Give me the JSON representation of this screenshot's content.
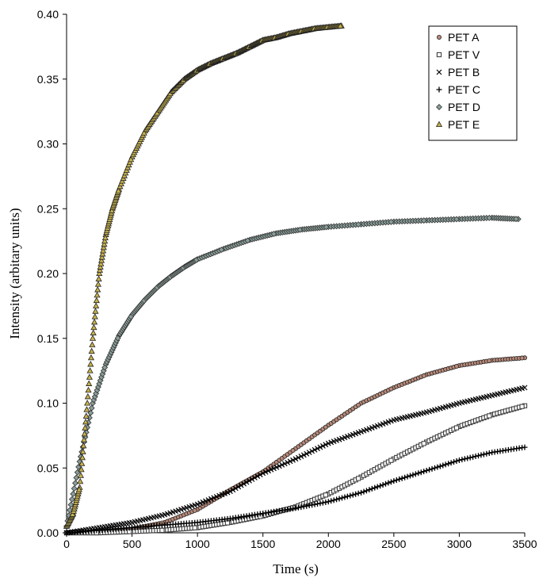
{
  "chart_data": {
    "type": "scatter",
    "title": "",
    "xlabel": "Time (s)",
    "ylabel": "Intensity (arbitary units)",
    "xlim": [
      0,
      3500
    ],
    "ylim": [
      0,
      0.4
    ],
    "xticks": [
      "0",
      "500",
      "1000",
      "1500",
      "2000",
      "2500",
      "3000",
      "3500"
    ],
    "xtick_values": [
      0,
      500,
      1000,
      1500,
      2000,
      2500,
      3000,
      3500
    ],
    "yticks": [
      "0.00",
      "0.05",
      "0.10",
      "0.15",
      "0.20",
      "0.25",
      "0.30",
      "0.35",
      "0.40"
    ],
    "ytick_values": [
      0,
      0.05,
      0.1,
      0.15,
      0.2,
      0.25,
      0.3,
      0.35,
      0.4
    ],
    "grid": false,
    "legend_position": "top-right",
    "series": [
      {
        "name": "PET A",
        "marker": "circle",
        "color": "#b98a7a",
        "x": [
          0,
          250,
          500,
          750,
          1000,
          1250,
          1500,
          1750,
          2000,
          2250,
          2500,
          2750,
          3000,
          3250,
          3500
        ],
        "y": [
          0.0,
          0.001,
          0.003,
          0.008,
          0.018,
          0.033,
          0.047,
          0.065,
          0.083,
          0.1,
          0.112,
          0.122,
          0.129,
          0.133,
          0.135
        ]
      },
      {
        "name": "PET V",
        "marker": "square",
        "color": "#404040",
        "x": [
          0,
          250,
          500,
          750,
          1000,
          1250,
          1500,
          1750,
          2000,
          2250,
          2500,
          2750,
          3000,
          3250,
          3500
        ],
        "y": [
          0.0,
          0.0,
          0.001,
          0.002,
          0.004,
          0.008,
          0.013,
          0.02,
          0.03,
          0.043,
          0.057,
          0.07,
          0.082,
          0.091,
          0.098
        ]
      },
      {
        "name": "PET B",
        "marker": "x",
        "color": "#000000",
        "x": [
          0,
          250,
          500,
          750,
          1000,
          1250,
          1500,
          1750,
          2000,
          2250,
          2500,
          2750,
          3000,
          3250,
          3500
        ],
        "y": [
          0.0,
          0.004,
          0.008,
          0.014,
          0.022,
          0.032,
          0.046,
          0.057,
          0.069,
          0.078,
          0.087,
          0.093,
          0.1,
          0.106,
          0.112
        ]
      },
      {
        "name": "PET C",
        "marker": "plus",
        "color": "#000000",
        "x": [
          0,
          250,
          500,
          750,
          1000,
          1250,
          1500,
          1750,
          2000,
          2250,
          2500,
          2750,
          3000,
          3250,
          3500
        ],
        "y": [
          0.0,
          0.002,
          0.004,
          0.006,
          0.008,
          0.011,
          0.015,
          0.019,
          0.024,
          0.031,
          0.04,
          0.048,
          0.056,
          0.062,
          0.066
        ]
      },
      {
        "name": "PET D",
        "marker": "diamond",
        "color": "#8a9e9a",
        "x": [
          0,
          100,
          200,
          300,
          400,
          500,
          600,
          700,
          800,
          900,
          1000,
          1200,
          1400,
          1600,
          1800,
          2000,
          2250,
          2500,
          2750,
          3000,
          3250,
          3450
        ],
        "y": [
          0.005,
          0.055,
          0.1,
          0.13,
          0.152,
          0.168,
          0.18,
          0.19,
          0.198,
          0.205,
          0.211,
          0.219,
          0.226,
          0.231,
          0.234,
          0.236,
          0.238,
          0.24,
          0.241,
          0.242,
          0.243,
          0.242
        ]
      },
      {
        "name": "PET E",
        "marker": "triangle",
        "color": "#c7b14a",
        "x": [
          0,
          50,
          100,
          150,
          200,
          250,
          300,
          350,
          400,
          500,
          600,
          700,
          800,
          900,
          1000,
          1100,
          1200,
          1300,
          1400,
          1500,
          1600,
          1700,
          1800,
          1900,
          2000,
          2100
        ],
        "y": [
          0.005,
          0.015,
          0.035,
          0.09,
          0.15,
          0.2,
          0.23,
          0.25,
          0.265,
          0.29,
          0.31,
          0.325,
          0.34,
          0.35,
          0.357,
          0.362,
          0.366,
          0.37,
          0.375,
          0.38,
          0.382,
          0.385,
          0.387,
          0.389,
          0.39,
          0.391
        ]
      }
    ]
  }
}
